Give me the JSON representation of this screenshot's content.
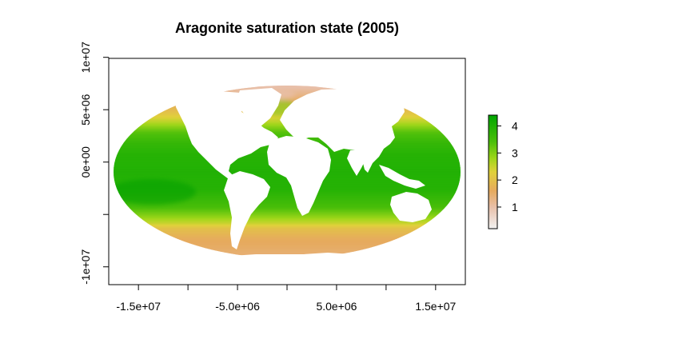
{
  "chart_data": {
    "type": "heatmap",
    "title": "Aragonite saturation state (2005)",
    "xlabel": "",
    "ylabel": "",
    "projection": "mollweide",
    "x_ticks": [
      {
        "value": -15000000,
        "label": "-1.5e+07"
      },
      {
        "value": -10000000,
        "label": ""
      },
      {
        "value": -5000000,
        "label": "-5.0e+06"
      },
      {
        "value": 0,
        "label": ""
      },
      {
        "value": 5000000,
        "label": "5.0e+06"
      },
      {
        "value": 10000000,
        "label": ""
      },
      {
        "value": 15000000,
        "label": "1.5e+07"
      }
    ],
    "y_ticks": [
      {
        "value": -10000000,
        "label": "-1e+07"
      },
      {
        "value": -5000000,
        "label": ""
      },
      {
        "value": 0,
        "label": "0e+00"
      },
      {
        "value": 5000000,
        "label": "5e+06"
      },
      {
        "value": 10000000,
        "label": "1e+07"
      }
    ],
    "xlim": [
      -18000000,
      18000000
    ],
    "ylim": [
      -11700000,
      9900000
    ],
    "value_range": [
      0.2,
      4.4
    ],
    "legend": {
      "placement": "right",
      "ticks": [
        {
          "value": 1,
          "label": "1"
        },
        {
          "value": 2,
          "label": "2"
        },
        {
          "value": 3,
          "label": "3"
        },
        {
          "value": 4,
          "label": "4"
        }
      ]
    },
    "color_scale": {
      "stops": [
        {
          "value": 0.2,
          "color": "#f2f2f2"
        },
        {
          "value": 1.0,
          "color": "#e8bfa9"
        },
        {
          "value": 1.6,
          "color": "#e6aa5e"
        },
        {
          "value": 2.3,
          "color": "#e0d13a"
        },
        {
          "value": 2.8,
          "color": "#9fd61a"
        },
        {
          "value": 3.4,
          "color": "#4cbf0a"
        },
        {
          "value": 4.4,
          "color": "#00a600"
        }
      ]
    },
    "latitude_profile": [
      {
        "lat": -78,
        "value": 1.45
      },
      {
        "lat": -70,
        "value": 1.55
      },
      {
        "lat": -60,
        "value": 1.65
      },
      {
        "lat": -50,
        "value": 2.0
      },
      {
        "lat": -44,
        "value": 2.55
      },
      {
        "lat": -38,
        "value": 2.95
      },
      {
        "lat": -30,
        "value": 3.45
      },
      {
        "lat": -15,
        "value": 3.9
      },
      {
        "lat": 0,
        "value": 3.95
      },
      {
        "lat": 15,
        "value": 3.9
      },
      {
        "lat": 25,
        "value": 3.7
      },
      {
        "lat": 35,
        "value": 3.3
      },
      {
        "lat": 45,
        "value": 2.55
      },
      {
        "lat": 55,
        "value": 1.95
      },
      {
        "lat": 65,
        "value": 1.6
      },
      {
        "lat": 75,
        "value": 1.25
      },
      {
        "lat": 85,
        "value": 1.0
      }
    ]
  }
}
